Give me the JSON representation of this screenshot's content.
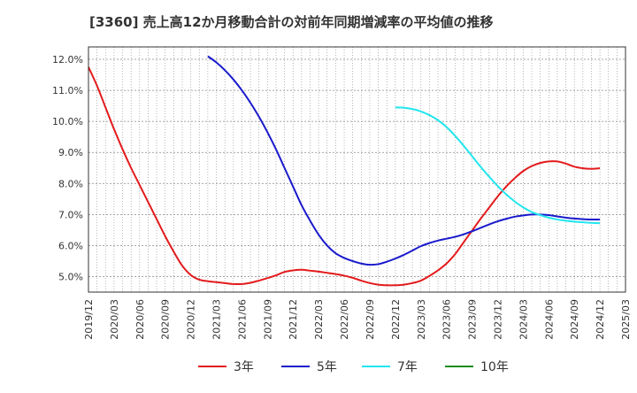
{
  "chart_data": {
    "type": "line",
    "title": "[3360]  売上高12か月移動合計の対前年同期増減率の平均値の推移",
    "xlabel": "",
    "ylabel": "",
    "x_ticks": [
      "2019/12",
      "2020/03",
      "2020/06",
      "2020/09",
      "2020/12",
      "2021/03",
      "2021/06",
      "2021/09",
      "2021/12",
      "2022/03",
      "2022/06",
      "2022/09",
      "2022/12",
      "2023/03",
      "2023/06",
      "2023/09",
      "2023/12",
      "2024/03",
      "2024/06",
      "2024/09",
      "2024/12",
      "2025/03"
    ],
    "y_ticks": [
      "5.0%",
      "6.0%",
      "7.0%",
      "8.0%",
      "9.0%",
      "10.0%",
      "11.0%",
      "12.0%"
    ],
    "ylim": [
      4.5,
      12.4
    ],
    "grid": true,
    "legend_position": "bottom",
    "x_unit": "month",
    "series": [
      {
        "name": "3年",
        "color": "#e31a1c",
        "x": [
          "2019/12",
          "2020/01",
          "2020/02",
          "2020/03",
          "2020/04",
          "2020/05",
          "2020/06",
          "2020/07",
          "2020/08",
          "2020/09",
          "2020/10",
          "2020/11",
          "2020/12",
          "2021/01",
          "2021/02",
          "2021/03",
          "2021/04",
          "2021/05",
          "2021/06",
          "2021/07",
          "2021/08",
          "2021/09",
          "2021/10",
          "2021/11",
          "2021/12",
          "2022/01",
          "2022/02",
          "2022/03",
          "2022/04",
          "2022/05",
          "2022/06",
          "2022/07",
          "2022/08",
          "2022/09",
          "2022/10",
          "2022/11",
          "2022/12",
          "2023/01",
          "2023/02",
          "2023/03",
          "2023/04",
          "2023/05",
          "2023/06",
          "2023/07",
          "2023/08",
          "2023/09",
          "2023/10",
          "2023/11",
          "2023/12",
          "2024/01",
          "2024/02",
          "2024/03",
          "2024/04",
          "2024/05",
          "2024/06",
          "2024/07",
          "2024/08",
          "2024/09",
          "2024/10",
          "2024/11",
          "2024/12"
        ],
        "values": [
          11.75,
          11.15,
          10.45,
          9.75,
          9.1,
          8.5,
          7.95,
          7.4,
          6.85,
          6.3,
          5.8,
          5.35,
          5.05,
          4.9,
          4.85,
          4.82,
          4.79,
          4.76,
          4.76,
          4.8,
          4.87,
          4.95,
          5.04,
          5.15,
          5.2,
          5.22,
          5.19,
          5.16,
          5.12,
          5.08,
          5.03,
          4.96,
          4.87,
          4.79,
          4.74,
          4.72,
          4.72,
          4.74,
          4.79,
          4.87,
          5.02,
          5.2,
          5.42,
          5.72,
          6.1,
          6.48,
          6.86,
          7.22,
          7.58,
          7.9,
          8.17,
          8.4,
          8.56,
          8.66,
          8.71,
          8.71,
          8.64,
          8.54,
          8.49,
          8.47,
          8.49
        ]
      },
      {
        "name": "5年",
        "color": "#1a1acc",
        "x": [
          "2021/02",
          "2021/03",
          "2021/04",
          "2021/05",
          "2021/06",
          "2021/07",
          "2021/08",
          "2021/09",
          "2021/10",
          "2021/11",
          "2021/12",
          "2022/01",
          "2022/02",
          "2022/03",
          "2022/04",
          "2022/05",
          "2022/06",
          "2022/07",
          "2022/08",
          "2022/09",
          "2022/10",
          "2022/11",
          "2022/12",
          "2023/01",
          "2023/02",
          "2023/03",
          "2023/04",
          "2023/05",
          "2023/06",
          "2023/07",
          "2023/08",
          "2023/09",
          "2023/10",
          "2023/11",
          "2023/12",
          "2024/01",
          "2024/02",
          "2024/03",
          "2024/04",
          "2024/05",
          "2024/06",
          "2024/07",
          "2024/08",
          "2024/09",
          "2024/10",
          "2024/11",
          "2024/12"
        ],
        "values": [
          12.1,
          11.9,
          11.65,
          11.35,
          11.0,
          10.6,
          10.15,
          9.65,
          9.1,
          8.5,
          7.9,
          7.3,
          6.8,
          6.35,
          6.0,
          5.75,
          5.6,
          5.5,
          5.42,
          5.38,
          5.4,
          5.48,
          5.58,
          5.7,
          5.84,
          5.98,
          6.08,
          6.16,
          6.22,
          6.28,
          6.36,
          6.46,
          6.57,
          6.68,
          6.78,
          6.86,
          6.93,
          6.97,
          7.0,
          7.0,
          6.98,
          6.94,
          6.9,
          6.87,
          6.85,
          6.84,
          6.84
        ]
      },
      {
        "name": "7年",
        "color": "#22e5ee",
        "x": [
          "2022/12",
          "2023/01",
          "2023/02",
          "2023/03",
          "2023/04",
          "2023/05",
          "2023/06",
          "2023/07",
          "2023/08",
          "2023/09",
          "2023/10",
          "2023/11",
          "2023/12",
          "2024/01",
          "2024/02",
          "2024/03",
          "2024/04",
          "2024/05",
          "2024/06",
          "2024/07",
          "2024/08",
          "2024/09",
          "2024/10",
          "2024/11",
          "2024/12"
        ],
        "values": [
          10.45,
          10.44,
          10.4,
          10.32,
          10.2,
          10.04,
          9.82,
          9.54,
          9.22,
          8.88,
          8.54,
          8.22,
          7.92,
          7.65,
          7.42,
          7.23,
          7.08,
          6.98,
          6.9,
          6.84,
          6.8,
          6.77,
          6.75,
          6.73,
          6.72
        ]
      },
      {
        "name": "10年",
        "color": "#1a8c1a",
        "x": [],
        "values": []
      }
    ]
  }
}
